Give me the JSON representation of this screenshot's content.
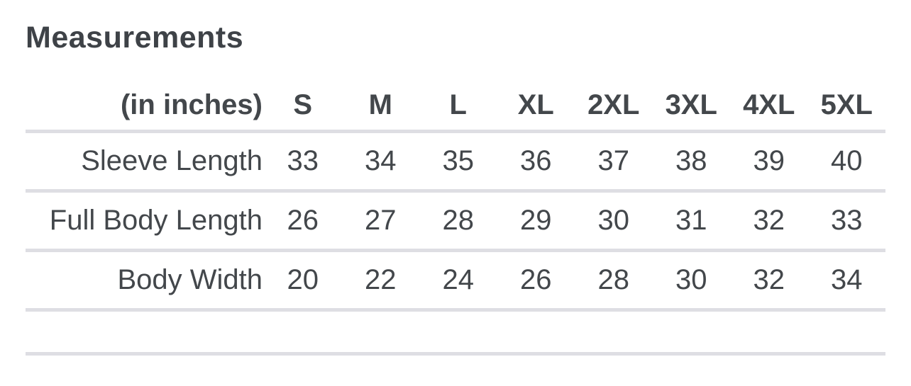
{
  "section": {
    "title": "Measurements"
  },
  "table": {
    "unit_label": "(in inches)",
    "sizes": [
      "S",
      "M",
      "L",
      "XL",
      "2XL",
      "3XL",
      "4XL",
      "5XL"
    ],
    "rows": [
      {
        "label": "Sleeve Length",
        "values": [
          33,
          34,
          35,
          36,
          37,
          38,
          39,
          40
        ]
      },
      {
        "label": "Full Body Length",
        "values": [
          26,
          27,
          28,
          29,
          30,
          31,
          32,
          33
        ]
      },
      {
        "label": "Body Width",
        "values": [
          20,
          22,
          24,
          26,
          28,
          30,
          32,
          34
        ]
      }
    ]
  },
  "colors": {
    "text": "#43474b",
    "title": "#3e4247",
    "divider": "#dedee3",
    "background": "#ffffff"
  }
}
